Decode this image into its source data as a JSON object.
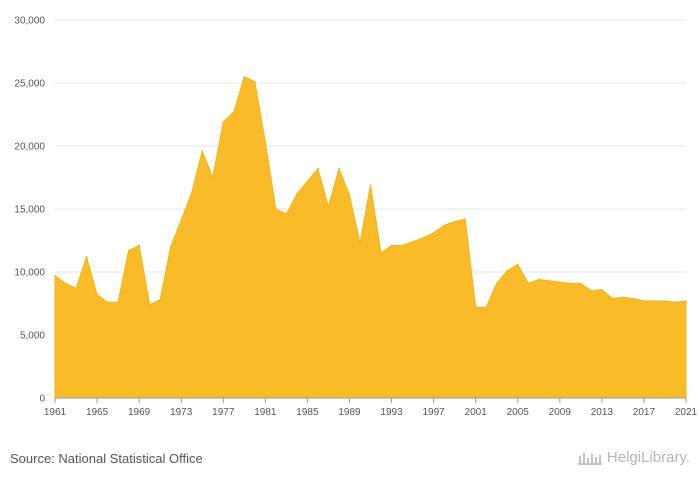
{
  "chart_data": {
    "type": "area",
    "title": "",
    "xlabel": "",
    "ylabel": "",
    "color": "#f9bc28",
    "grid": true,
    "ylim": [
      0,
      30000
    ],
    "yticks": [
      0,
      5000,
      10000,
      15000,
      20000,
      25000,
      30000
    ],
    "ytick_labels": [
      "0",
      "5,000",
      "10,000",
      "15,000",
      "20,000",
      "25,000",
      "30,000"
    ],
    "xticks": [
      1961,
      1965,
      1969,
      1973,
      1977,
      1981,
      1985,
      1989,
      1993,
      1997,
      2001,
      2005,
      2009,
      2013,
      2017,
      2021
    ],
    "x": [
      1961,
      1962,
      1963,
      1964,
      1965,
      1966,
      1967,
      1968,
      1969,
      1970,
      1971,
      1972,
      1973,
      1974,
      1975,
      1976,
      1977,
      1978,
      1979,
      1980,
      1981,
      1982,
      1983,
      1984,
      1985,
      1986,
      1987,
      1988,
      1989,
      1990,
      1991,
      1992,
      1993,
      1994,
      1995,
      1996,
      1997,
      1998,
      1999,
      2000,
      2001,
      2002,
      2003,
      2004,
      2005,
      2006,
      2007,
      2008,
      2009,
      2010,
      2011,
      2012,
      2013,
      2014,
      2015,
      2016,
      2017,
      2018,
      2019,
      2020,
      2021
    ],
    "values": [
      9700,
      9100,
      8700,
      11200,
      8200,
      7600,
      7600,
      11700,
      12100,
      7400,
      7800,
      12000,
      14100,
      16300,
      19600,
      17500,
      21900,
      22700,
      25500,
      25100,
      20300,
      15000,
      14600,
      16200,
      17200,
      18200,
      15200,
      18200,
      16100,
      12300,
      16900,
      11500,
      12100,
      12100,
      12400,
      12700,
      13100,
      13700,
      14000,
      14200,
      7200,
      7200,
      9100,
      10100,
      10600,
      9100,
      9400,
      9300,
      9200,
      9100,
      9100,
      8500,
      8600,
      7900,
      8000,
      7900,
      7700,
      7700,
      7700,
      7600,
      7700
    ]
  },
  "footer": {
    "source": "Source: National Statistical Office",
    "logo_text": "HelgiLibrary."
  }
}
